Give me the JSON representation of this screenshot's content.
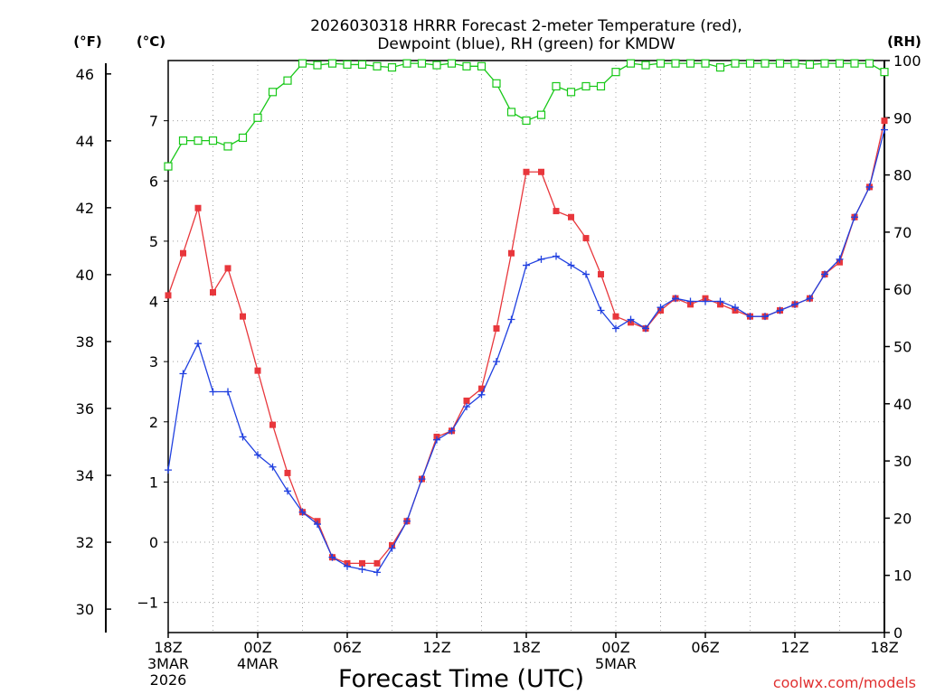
{
  "chart_data": {
    "type": "line",
    "title_line1": "2026030318 HRRR Forecast 2-meter Temperature (red),",
    "title_line2": "Dewpoint (blue), RH (green) for KMDW",
    "xlabel": "Forecast Time (UTC)",
    "credit": "coolwx.com/models",
    "units": {
      "left_f": "(°F)",
      "left_c": "(°C)",
      "right_rh": "(RH)"
    },
    "x": [
      0,
      1,
      2,
      3,
      4,
      5,
      6,
      7,
      8,
      9,
      10,
      11,
      12,
      13,
      14,
      15,
      16,
      17,
      18,
      19,
      20,
      21,
      22,
      23,
      24,
      25,
      26,
      27,
      28,
      29,
      30,
      31,
      32,
      33,
      34,
      35,
      36,
      37,
      38,
      39,
      40,
      41,
      42,
      43,
      44,
      45,
      46,
      47,
      48
    ],
    "xlim": [
      0,
      48
    ],
    "x_ticks": [
      {
        "hour": 0,
        "lines": [
          "18Z",
          "3MAR",
          "2026"
        ]
      },
      {
        "hour": 6,
        "lines": [
          "00Z",
          "4MAR"
        ]
      },
      {
        "hour": 12,
        "lines": [
          "06Z"
        ]
      },
      {
        "hour": 18,
        "lines": [
          "12Z"
        ]
      },
      {
        "hour": 24,
        "lines": [
          "18Z"
        ]
      },
      {
        "hour": 30,
        "lines": [
          "00Z",
          "5MAR"
        ]
      },
      {
        "hour": 36,
        "lines": [
          "06Z"
        ]
      },
      {
        "hour": 42,
        "lines": [
          "12Z"
        ]
      },
      {
        "hour": 48,
        "lines": [
          "18Z"
        ]
      }
    ],
    "ylim_c": [
      -1.5,
      8.0
    ],
    "yticks_c": [
      -1,
      0,
      1,
      2,
      3,
      4,
      5,
      6,
      7
    ],
    "yticks_f": [
      30,
      32,
      34,
      36,
      38,
      40,
      42,
      44,
      46
    ],
    "ylim_rh": [
      0,
      100
    ],
    "yticks_rh": [
      0,
      10,
      20,
      30,
      40,
      50,
      60,
      70,
      80,
      90,
      100
    ],
    "series": [
      {
        "name": "Temperature",
        "axis": "c",
        "color": "#e8373c",
        "marker": "square-filled",
        "values": [
          4.1,
          4.8,
          5.55,
          4.15,
          4.55,
          3.75,
          2.85,
          1.95,
          1.15,
          0.5,
          0.35,
          -0.25,
          -0.35,
          -0.35,
          -0.35,
          -0.05,
          0.35,
          1.05,
          1.75,
          1.85,
          2.35,
          2.55,
          3.55,
          4.8,
          6.15,
          6.15,
          5.5,
          5.4,
          5.05,
          4.45,
          3.75,
          3.65,
          3.55,
          3.85,
          4.05,
          3.95,
          4.05,
          3.95,
          3.85,
          3.75,
          3.75,
          3.85,
          3.95,
          4.05,
          4.45,
          4.65,
          5.4,
          5.9,
          7.0
        ]
      },
      {
        "name": "Dewpoint",
        "axis": "c",
        "color": "#2040e0",
        "marker": "plus",
        "values": [
          1.2,
          2.8,
          3.3,
          2.5,
          2.5,
          1.75,
          1.45,
          1.25,
          0.85,
          0.5,
          0.3,
          -0.25,
          -0.4,
          -0.45,
          -0.5,
          -0.1,
          0.35,
          1.05,
          1.7,
          1.85,
          2.25,
          2.45,
          3.0,
          3.7,
          4.6,
          4.7,
          4.75,
          4.6,
          4.45,
          3.85,
          3.55,
          3.7,
          3.55,
          3.9,
          4.05,
          4.0,
          4.0,
          4.0,
          3.9,
          3.75,
          3.75,
          3.85,
          3.95,
          4.05,
          4.45,
          4.7,
          5.4,
          5.9,
          6.85
        ]
      },
      {
        "name": "RH",
        "axis": "rh",
        "color": "#18c818",
        "marker": "square-open",
        "values": [
          81.5,
          86,
          86,
          86,
          85,
          86.5,
          90,
          94.5,
          96.5,
          99.5,
          99.2,
          99.5,
          99.3,
          99.3,
          99,
          98.8,
          99.5,
          99.5,
          99.2,
          99.5,
          99,
          99,
          96,
          91,
          89.5,
          90.5,
          95.5,
          94.5,
          95.5,
          95.5,
          98,
          99.5,
          99.2,
          99.5,
          99.5,
          99.5,
          99.5,
          98.8,
          99.5,
          99.5,
          99.5,
          99.5,
          99.5,
          99.3,
          99.5,
          99.5,
          99.5,
          99.5,
          98
        ]
      }
    ]
  }
}
